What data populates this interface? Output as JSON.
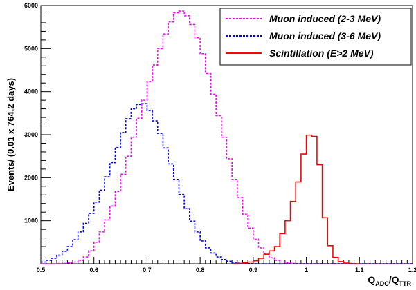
{
  "chart_data": {
    "type": "line",
    "style": "step-histogram",
    "xlabel_main": "Q",
    "xlabel_sub1": "ADC",
    "xlabel_mid": "/Q",
    "xlabel_sub2": "TTR",
    "ylabel": "Events/ (0.01 x   764.2 days)",
    "xlim": [
      0.5,
      1.2
    ],
    "ylim": [
      0,
      6000
    ],
    "xticks": [
      0.5,
      0.6,
      0.7,
      0.8,
      0.9,
      1.0,
      1.1,
      1.2
    ],
    "xtick_labels": [
      "0.5",
      "0.6",
      "0.7",
      "0.8",
      "0.9",
      "1",
      "1.1",
      "1.2"
    ],
    "yticks": [
      1000,
      2000,
      3000,
      4000,
      5000,
      6000
    ],
    "ytick_labels": [
      "1000",
      "2000",
      "3000",
      "4000",
      "5000",
      "6000"
    ],
    "legend_position": "top-right",
    "bin_width": 0.01,
    "series": [
      {
        "name": "Muon induced (2-3 MeV)",
        "color": "#ff00ff",
        "line": "dashed",
        "bin_starts": [
          0.5,
          0.51,
          0.52,
          0.53,
          0.54,
          0.55,
          0.56,
          0.57,
          0.58,
          0.59,
          0.6,
          0.61,
          0.62,
          0.63,
          0.64,
          0.65,
          0.66,
          0.67,
          0.68,
          0.69,
          0.7,
          0.71,
          0.72,
          0.73,
          0.74,
          0.75,
          0.76,
          0.77,
          0.78,
          0.79,
          0.8,
          0.81,
          0.82,
          0.83,
          0.84,
          0.85,
          0.86,
          0.87,
          0.88,
          0.89,
          0.9,
          0.91,
          0.92,
          0.93,
          0.94,
          0.95,
          0.96,
          0.97,
          0.98,
          0.99,
          1.0,
          1.01,
          1.02,
          1.03,
          1.04,
          1.05,
          1.06,
          1.07,
          1.08,
          1.09,
          1.1,
          1.11,
          1.12,
          1.13,
          1.14,
          1.15,
          1.16,
          1.17,
          1.18,
          1.19
        ],
        "values": [
          0,
          0,
          0,
          5,
          10,
          20,
          40,
          80,
          160,
          300,
          500,
          740,
          1020,
          1340,
          1680,
          2080,
          2500,
          2940,
          3380,
          3800,
          4230,
          4620,
          5000,
          5340,
          5620,
          5830,
          5870,
          5760,
          5560,
          5250,
          4880,
          4420,
          3940,
          3440,
          2940,
          2440,
          1960,
          1540,
          1150,
          830,
          570,
          370,
          230,
          140,
          80,
          40,
          20,
          10,
          5,
          0,
          0,
          0,
          0,
          0,
          0,
          0,
          0,
          0,
          0,
          0,
          0,
          0,
          0,
          0,
          0,
          0,
          0,
          0,
          0,
          0
        ]
      },
      {
        "name": "Muon induced (3-6 MeV)",
        "color": "#0000ff",
        "line": "dashed",
        "bin_starts": [
          0.5,
          0.51,
          0.52,
          0.53,
          0.54,
          0.55,
          0.56,
          0.57,
          0.58,
          0.59,
          0.6,
          0.61,
          0.62,
          0.63,
          0.64,
          0.65,
          0.66,
          0.67,
          0.68,
          0.69,
          0.7,
          0.71,
          0.72,
          0.73,
          0.74,
          0.75,
          0.76,
          0.77,
          0.78,
          0.79,
          0.8,
          0.81,
          0.82,
          0.83,
          0.84,
          0.85,
          0.86,
          0.87,
          0.88,
          0.89,
          0.9,
          0.91,
          0.92,
          0.93,
          0.94,
          0.95,
          0.96,
          0.97,
          0.98,
          0.99,
          1.0,
          1.01,
          1.02,
          1.03,
          1.04,
          1.05,
          1.06,
          1.07,
          1.08,
          1.09,
          1.1,
          1.11,
          1.12,
          1.13,
          1.14,
          1.15,
          1.16,
          1.17,
          1.18,
          1.19
        ],
        "values": [
          40,
          80,
          130,
          200,
          290,
          400,
          560,
          740,
          940,
          1170,
          1430,
          1710,
          2020,
          2350,
          2700,
          3050,
          3370,
          3600,
          3700,
          3720,
          3560,
          3320,
          3030,
          2690,
          2320,
          1960,
          1610,
          1280,
          990,
          740,
          530,
          370,
          250,
          160,
          100,
          60,
          30,
          15,
          8,
          4,
          2,
          0,
          0,
          0,
          0,
          0,
          0,
          0,
          0,
          0,
          0,
          0,
          0,
          0,
          0,
          0,
          0,
          0,
          0,
          0,
          0,
          0,
          0,
          0,
          0,
          0,
          0,
          0,
          0,
          0
        ]
      },
      {
        "name": "Scintillation (E>2 MeV)",
        "color": "#ff0000",
        "line": "solid",
        "bin_starts": [
          0.86,
          0.87,
          0.88,
          0.89,
          0.9,
          0.91,
          0.92,
          0.93,
          0.94,
          0.95,
          0.96,
          0.97,
          0.98,
          0.99,
          1.0,
          1.01,
          1.02,
          1.03,
          1.04,
          1.05,
          1.06,
          1.07,
          1.08,
          1.09
        ],
        "values": [
          5,
          10,
          20,
          40,
          70,
          130,
          220,
          300,
          400,
          700,
          1000,
          1450,
          1900,
          2550,
          2990,
          2960,
          2300,
          1070,
          420,
          150,
          50,
          15,
          5,
          0
        ]
      }
    ]
  }
}
